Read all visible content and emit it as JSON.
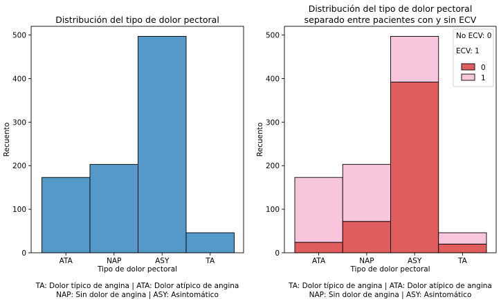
{
  "chart_data": [
    {
      "type": "bar",
      "title": "Distribución del tipo de dolor pectoral",
      "xlabel": "Tipo de dolor pectoral",
      "ylabel": "Recuento",
      "categories": [
        "ATA",
        "NAP",
        "ASY",
        "TA"
      ],
      "values": [
        173,
        203,
        497,
        46
      ],
      "ylim": [
        0,
        520
      ],
      "yticks": [
        0,
        100,
        200,
        300,
        400,
        500
      ],
      "colors": [
        "#5599c8"
      ],
      "caption": [
        "TA: Dolor típico de angina | ATA: Dolor atípico de angina",
        "NAP: Sin dolor de angina | ASY: Asintomático"
      ]
    },
    {
      "type": "bar",
      "stacked": true,
      "title": [
        "Distribución del tipo de dolor pectoral",
        "separado entre pacientes con y sin ECV"
      ],
      "xlabel": "Tipo de dolor pectoral",
      "ylabel": "Recuento",
      "categories": [
        "ATA",
        "NAP",
        "ASY",
        "TA"
      ],
      "series": [
        {
          "name": "0",
          "values": [
            24,
            72,
            392,
            20
          ],
          "color": "#e05c5d"
        },
        {
          "name": "1",
          "values": [
            149,
            131,
            105,
            26
          ],
          "color": "#f7c6dc"
        }
      ],
      "ylim": [
        0,
        520
      ],
      "yticks": [
        0,
        100,
        200,
        300,
        400,
        500
      ],
      "legend": {
        "position": "top-right",
        "lines": [
          "No ECV: 0",
          "ECV: 1"
        ]
      },
      "caption": [
        "TA: Dolor típico de angina | ATA: Dolor atípico de angina",
        "NAP: Sin dolor de angina | ASY: Asintomático"
      ]
    }
  ]
}
